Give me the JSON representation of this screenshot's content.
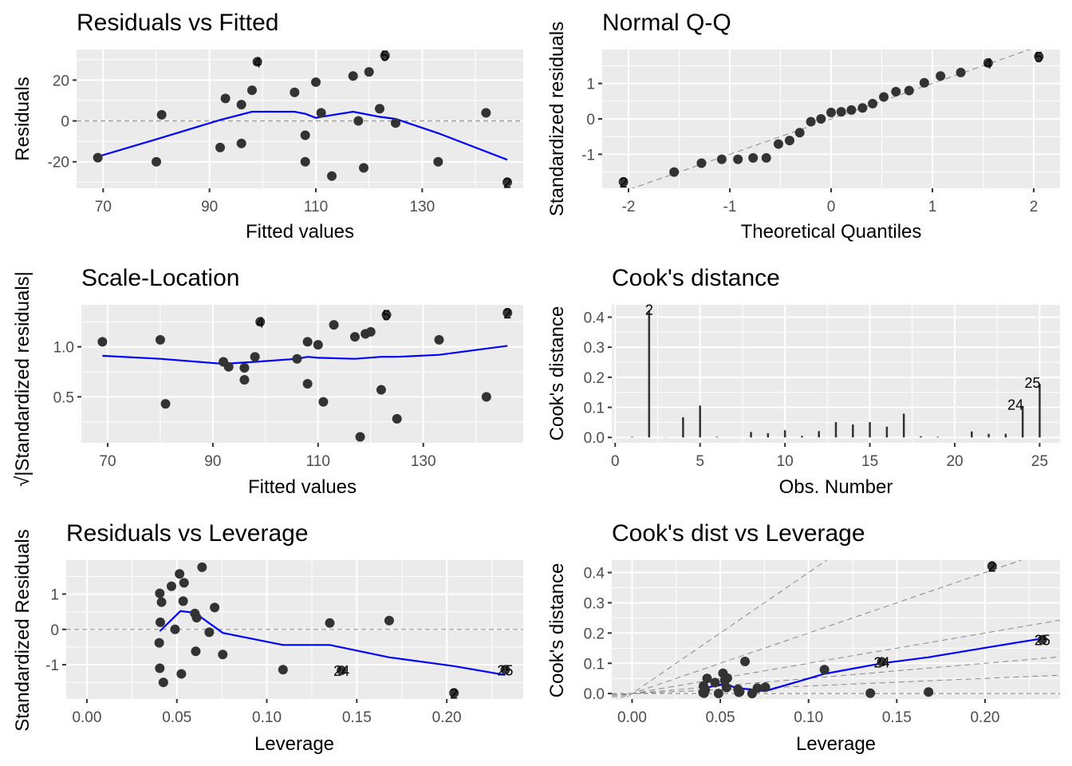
{
  "figure": {
    "description": "ggplot2-style linear model diagnostic plots (6 panels)"
  },
  "colors": {
    "panel_bg": "#ebebeb",
    "grid": "#ffffff",
    "point": "#333333",
    "smooth": "#0000ff",
    "reference_line": "#999999",
    "tick_text": "#4d4d4d"
  },
  "chart_data": [
    {
      "id": "resid-fitted",
      "type": "scatter",
      "title": "Residuals vs Fitted",
      "xlabel": "Fitted values",
      "ylabel": "Residuals",
      "xlim": [
        65,
        149
      ],
      "ylim": [
        -33,
        35
      ],
      "xticks": [
        70,
        90,
        110,
        130
      ],
      "yticks": [
        -20,
        0,
        20
      ],
      "xtick_labels": [
        "70",
        "90",
        "110",
        "130"
      ],
      "ytick_labels": [
        "-20",
        "0",
        "20"
      ],
      "hline": 0,
      "points": [
        {
          "x": 69,
          "y": -18
        },
        {
          "x": 80,
          "y": -20
        },
        {
          "x": 81,
          "y": 3
        },
        {
          "x": 92,
          "y": -13
        },
        {
          "x": 93,
          "y": 11
        },
        {
          "x": 96,
          "y": 8
        },
        {
          "x": 96,
          "y": -11
        },
        {
          "x": 98,
          "y": 15
        },
        {
          "x": 99,
          "y": 29,
          "label": "4"
        },
        {
          "x": 106,
          "y": 14
        },
        {
          "x": 108,
          "y": -7
        },
        {
          "x": 108,
          "y": -20
        },
        {
          "x": 110,
          "y": 19
        },
        {
          "x": 111,
          "y": 4
        },
        {
          "x": 113,
          "y": -27
        },
        {
          "x": 117,
          "y": 22
        },
        {
          "x": 118,
          "y": 0
        },
        {
          "x": 119,
          "y": -23
        },
        {
          "x": 120,
          "y": 24
        },
        {
          "x": 122,
          "y": 6
        },
        {
          "x": 123,
          "y": 32,
          "label": "5"
        },
        {
          "x": 125,
          "y": -1
        },
        {
          "x": 133,
          "y": -20
        },
        {
          "x": 142,
          "y": 4
        },
        {
          "x": 146,
          "y": -30,
          "label": "2"
        }
      ],
      "smooth": [
        [
          69,
          -17.5
        ],
        [
          80,
          -9
        ],
        [
          92,
          0.5
        ],
        [
          98,
          4.5
        ],
        [
          106,
          4.5
        ],
        [
          108,
          3.5
        ],
        [
          110,
          1.5
        ],
        [
          111,
          2
        ],
        [
          117,
          4.5
        ],
        [
          122,
          2
        ],
        [
          125,
          1
        ],
        [
          133,
          -6
        ],
        [
          146,
          -19
        ]
      ]
    },
    {
      "id": "normal-qq",
      "type": "scatter",
      "title": "Normal Q-Q",
      "xlabel": "Theoretical Quantiles",
      "ylabel": "Standardized residuals",
      "xlim": [
        -2.26,
        2.26
      ],
      "ylim": [
        -1.96,
        1.96
      ],
      "xticks": [
        -2,
        -1,
        0,
        1,
        2
      ],
      "yticks": [
        -1,
        0,
        1
      ],
      "xtick_labels": [
        "-2",
        "-1",
        "0",
        "1",
        "2"
      ],
      "ytick_labels": [
        "-1",
        "0",
        "1"
      ],
      "refline": {
        "slope": 1,
        "intercept": 0
      },
      "points": [
        {
          "x": -2.05,
          "y": -1.78,
          "label": "2"
        },
        {
          "x": -1.55,
          "y": -1.5
        },
        {
          "x": -1.28,
          "y": -1.25
        },
        {
          "x": -1.08,
          "y": -1.14
        },
        {
          "x": -0.92,
          "y": -1.14
        },
        {
          "x": -0.77,
          "y": -1.1
        },
        {
          "x": -0.64,
          "y": -1.1
        },
        {
          "x": -0.52,
          "y": -0.71
        },
        {
          "x": -0.41,
          "y": -0.61
        },
        {
          "x": -0.31,
          "y": -0.39
        },
        {
          "x": -0.2,
          "y": -0.08
        },
        {
          "x": -0.1,
          "y": 0.0
        },
        {
          "x": 0.0,
          "y": 0.18
        },
        {
          "x": 0.1,
          "y": 0.2
        },
        {
          "x": 0.2,
          "y": 0.25
        },
        {
          "x": 0.31,
          "y": 0.31
        },
        {
          "x": 0.41,
          "y": 0.43
        },
        {
          "x": 0.52,
          "y": 0.62
        },
        {
          "x": 0.64,
          "y": 0.77
        },
        {
          "x": 0.77,
          "y": 0.8
        },
        {
          "x": 0.92,
          "y": 1.02
        },
        {
          "x": 1.08,
          "y": 1.21
        },
        {
          "x": 1.28,
          "y": 1.31
        },
        {
          "x": 1.55,
          "y": 1.58,
          "label": "4"
        },
        {
          "x": 2.05,
          "y": 1.76,
          "label": "5"
        }
      ]
    },
    {
      "id": "scale-location",
      "type": "scatter",
      "title": "Scale-Location",
      "xlabel": "Fitted values",
      "ylabel": "√|Standardized residuals|",
      "xlim": [
        65,
        149
      ],
      "ylim": [
        0.04,
        1.42
      ],
      "xticks": [
        70,
        90,
        110,
        130
      ],
      "yticks": [
        0.5,
        1.0
      ],
      "xtick_labels": [
        "70",
        "90",
        "110",
        "130"
      ],
      "ytick_labels": [
        "0.5",
        "1.0"
      ],
      "points": [
        {
          "x": 69,
          "y": 1.05
        },
        {
          "x": 80,
          "y": 1.07
        },
        {
          "x": 81,
          "y": 0.43
        },
        {
          "x": 92,
          "y": 0.85
        },
        {
          "x": 93,
          "y": 0.8
        },
        {
          "x": 96,
          "y": 0.79
        },
        {
          "x": 96,
          "y": 0.67
        },
        {
          "x": 98,
          "y": 0.9
        },
        {
          "x": 99,
          "y": 1.25,
          "label": "4"
        },
        {
          "x": 106,
          "y": 0.88
        },
        {
          "x": 108,
          "y": 1.05
        },
        {
          "x": 108,
          "y": 0.63
        },
        {
          "x": 110,
          "y": 1.02
        },
        {
          "x": 111,
          "y": 0.45
        },
        {
          "x": 113,
          "y": 1.22
        },
        {
          "x": 117,
          "y": 1.1
        },
        {
          "x": 118,
          "y": 0.1
        },
        {
          "x": 119,
          "y": 1.13
        },
        {
          "x": 120,
          "y": 1.15
        },
        {
          "x": 122,
          "y": 0.57
        },
        {
          "x": 123,
          "y": 1.32,
          "label": "5"
        },
        {
          "x": 125,
          "y": 0.28
        },
        {
          "x": 133,
          "y": 1.07
        },
        {
          "x": 142,
          "y": 0.5
        },
        {
          "x": 146,
          "y": 1.34,
          "label": "2"
        }
      ],
      "smooth": [
        [
          69,
          0.91
        ],
        [
          80,
          0.88
        ],
        [
          92,
          0.83
        ],
        [
          98,
          0.85
        ],
        [
          106,
          0.88
        ],
        [
          108,
          0.9
        ],
        [
          110,
          0.89
        ],
        [
          117,
          0.88
        ],
        [
          122,
          0.9
        ],
        [
          125,
          0.9
        ],
        [
          133,
          0.92
        ],
        [
          146,
          1.01
        ]
      ]
    },
    {
      "id": "cooks-distance",
      "type": "bar",
      "title": "Cook's distance",
      "xlabel": "Obs. Number",
      "ylabel": "Cook's distance",
      "xlim": [
        -0.2,
        26.2
      ],
      "ylim": [
        -0.018,
        0.441
      ],
      "xticks": [
        0,
        5,
        10,
        15,
        20,
        25
      ],
      "yticks": [
        0.0,
        0.1,
        0.2,
        0.3,
        0.4
      ],
      "xtick_labels": [
        "0",
        "5",
        "10",
        "15",
        "20",
        "25"
      ],
      "ytick_labels": [
        "0.0",
        "0.1",
        "0.2",
        "0.3",
        "0.4"
      ],
      "categories": [
        1,
        2,
        3,
        4,
        5,
        6,
        7,
        8,
        9,
        10,
        11,
        12,
        13,
        14,
        15,
        16,
        17,
        18,
        19,
        20,
        21,
        22,
        23,
        24,
        25
      ],
      "values": [
        0.002,
        0.421,
        0.0005,
        0.067,
        0.106,
        0.002,
        0.0,
        0.018,
        0.014,
        0.024,
        0.005,
        0.021,
        0.051,
        0.043,
        0.051,
        0.036,
        0.079,
        0.004,
        0.002,
        0.0003,
        0.02,
        0.012,
        0.012,
        0.105,
        0.178
      ],
      "labels": {
        "2": "2",
        "24": "24",
        "25": "25"
      }
    },
    {
      "id": "resid-leverage",
      "type": "scatter",
      "title": "Residuals vs Leverage",
      "xlabel": "Leverage",
      "ylabel": "Standardized Residuals",
      "xlim": [
        -0.0115,
        0.2425
      ],
      "ylim": [
        -1.97,
        1.96
      ],
      "xticks": [
        0.0,
        0.05,
        0.1,
        0.15,
        0.2
      ],
      "yticks": [
        -1,
        0,
        1
      ],
      "xtick_labels": [
        "0.00",
        "0.05",
        "0.10",
        "0.15",
        "0.20"
      ],
      "ytick_labels": [
        "-1",
        "0",
        "1"
      ],
      "hline": 0,
      "points": [
        {
          "x": 0.0405,
          "y": 1.02
        },
        {
          "x": 0.0415,
          "y": 0.77
        },
        {
          "x": 0.0408,
          "y": 0.2
        },
        {
          "x": 0.0402,
          "y": -0.38
        },
        {
          "x": 0.0405,
          "y": -1.1
        },
        {
          "x": 0.0425,
          "y": -1.5
        },
        {
          "x": 0.047,
          "y": 1.22
        },
        {
          "x": 0.049,
          "y": 0.0
        },
        {
          "x": 0.0515,
          "y": 1.57
        },
        {
          "x": 0.0525,
          "y": -1.26
        },
        {
          "x": 0.054,
          "y": 1.32
        },
        {
          "x": 0.0535,
          "y": 0.8
        },
        {
          "x": 0.06,
          "y": 0.45
        },
        {
          "x": 0.061,
          "y": 0.33
        },
        {
          "x": 0.0605,
          "y": -0.62
        },
        {
          "x": 0.064,
          "y": 1.76
        },
        {
          "x": 0.068,
          "y": -0.08
        },
        {
          "x": 0.071,
          "y": 0.62
        },
        {
          "x": 0.0755,
          "y": -0.71
        },
        {
          "x": 0.109,
          "y": -1.14
        },
        {
          "x": 0.135,
          "y": 0.18
        },
        {
          "x": 0.1415,
          "y": -1.16,
          "label": "24"
        },
        {
          "x": 0.168,
          "y": 0.25
        },
        {
          "x": 0.204,
          "y": -1.8,
          "label": "2"
        },
        {
          "x": 0.2325,
          "y": -1.14,
          "label": "25"
        }
      ],
      "smooth": [
        [
          0.0405,
          -0.05
        ],
        [
          0.052,
          0.52
        ],
        [
          0.06,
          0.47
        ],
        [
          0.0755,
          -0.1
        ],
        [
          0.109,
          -0.44
        ],
        [
          0.135,
          -0.44
        ],
        [
          0.168,
          -0.79
        ],
        [
          0.204,
          -1.04
        ],
        [
          0.2325,
          -1.29
        ]
      ]
    },
    {
      "id": "cooks-leverage",
      "type": "scatter",
      "title": "Cook's dist vs Leverage",
      "xlabel": "Leverage",
      "ylabel": "Cook's distance",
      "xlim": [
        -0.0115,
        0.2425
      ],
      "ylim": [
        -0.018,
        0.441
      ],
      "xticks": [
        0.0,
        0.05,
        0.1,
        0.15,
        0.2
      ],
      "yticks": [
        0.0,
        0.1,
        0.2,
        0.3,
        0.4
      ],
      "xtick_labels": [
        "0.00",
        "0.05",
        "0.10",
        "0.15",
        "0.20"
      ],
      "ytick_labels": [
        "0.0",
        "0.1",
        "0.2",
        "0.3",
        "0.4"
      ],
      "hline": 0,
      "reference_slopes": [
        0.25,
        0.5,
        1.0,
        2.0,
        4.0
      ],
      "points": [
        {
          "x": 0.0405,
          "y": 0.025
        },
        {
          "x": 0.0415,
          "y": 0.012
        },
        {
          "x": 0.0408,
          "y": 0.001
        },
        {
          "x": 0.0402,
          "y": 0.003
        },
        {
          "x": 0.0405,
          "y": 0.002
        },
        {
          "x": 0.0425,
          "y": 0.05
        },
        {
          "x": 0.047,
          "y": 0.036
        },
        {
          "x": 0.049,
          "y": 0.0
        },
        {
          "x": 0.0515,
          "y": 0.067
        },
        {
          "x": 0.0525,
          "y": 0.043
        },
        {
          "x": 0.054,
          "y": 0.051
        },
        {
          "x": 0.0535,
          "y": 0.02
        },
        {
          "x": 0.06,
          "y": 0.014
        },
        {
          "x": 0.061,
          "y": 0.006
        },
        {
          "x": 0.0605,
          "y": 0.004
        },
        {
          "x": 0.064,
          "y": 0.106
        },
        {
          "x": 0.068,
          "y": 0.0
        },
        {
          "x": 0.071,
          "y": 0.018
        },
        {
          "x": 0.0755,
          "y": 0.021
        },
        {
          "x": 0.109,
          "y": 0.079
        },
        {
          "x": 0.135,
          "y": 0.001
        },
        {
          "x": 0.1415,
          "y": 0.105,
          "label": "24"
        },
        {
          "x": 0.168,
          "y": 0.005
        },
        {
          "x": 0.204,
          "y": 0.421,
          "label": "2"
        },
        {
          "x": 0.2325,
          "y": 0.178,
          "label": "25"
        }
      ],
      "smooth": [
        [
          0.0405,
          0.018
        ],
        [
          0.052,
          0.031
        ],
        [
          0.06,
          0.018
        ],
        [
          0.0755,
          0.008
        ],
        [
          0.109,
          0.065
        ],
        [
          0.1415,
          0.1
        ],
        [
          0.168,
          0.12
        ],
        [
          0.204,
          0.155
        ],
        [
          0.2325,
          0.182
        ]
      ]
    }
  ]
}
